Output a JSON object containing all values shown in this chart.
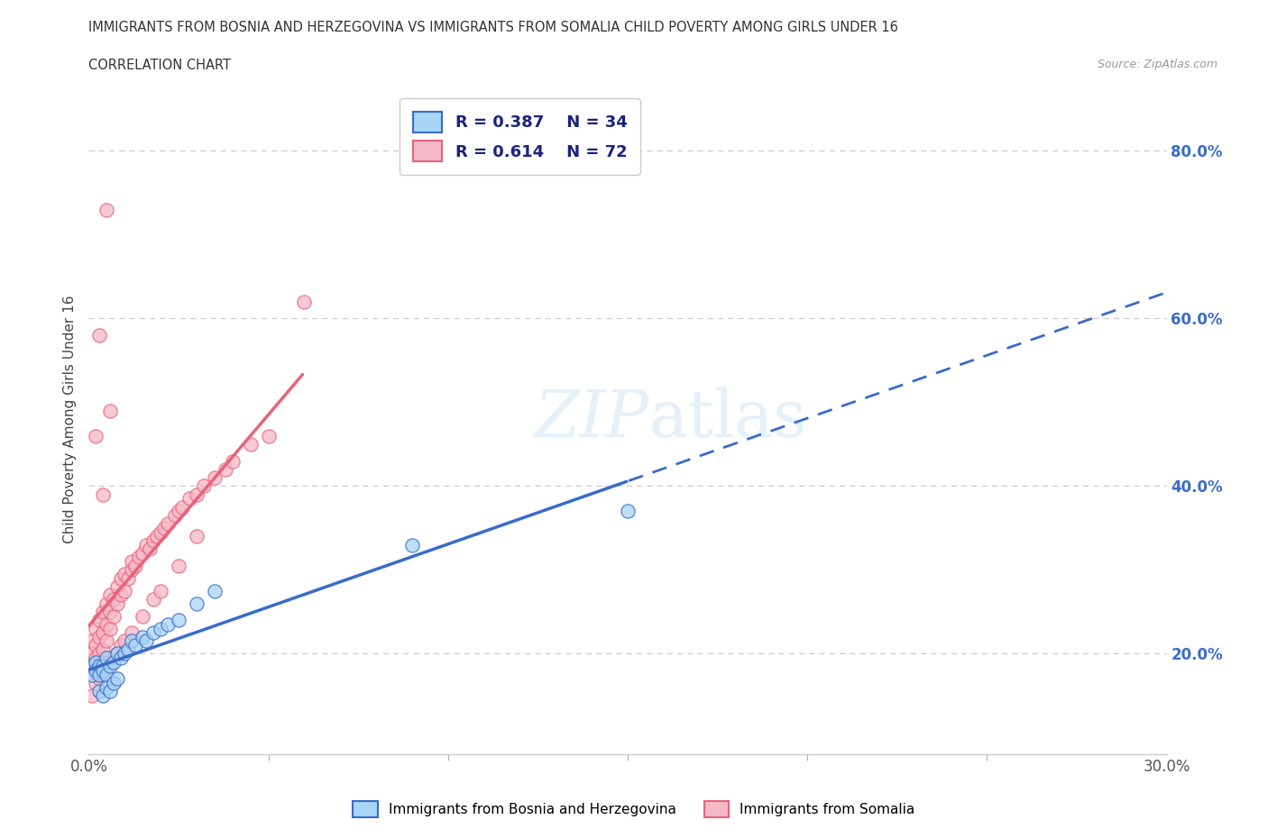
{
  "title": "IMMIGRANTS FROM BOSNIA AND HERZEGOVINA VS IMMIGRANTS FROM SOMALIA CHILD POVERTY AMONG GIRLS UNDER 16",
  "subtitle": "CORRELATION CHART",
  "source": "Source: ZipAtlas.com",
  "ylabel": "Child Poverty Among Girls Under 16",
  "ytick_labels": [
    "20.0%",
    "40.0%",
    "60.0%",
    "80.0%"
  ],
  "ytick_values": [
    0.2,
    0.4,
    0.6,
    0.8
  ],
  "xlim": [
    0.0,
    0.3
  ],
  "ylim": [
    0.08,
    0.88
  ],
  "bosnia_R": 0.387,
  "bosnia_N": 34,
  "somalia_R": 0.614,
  "somalia_N": 72,
  "bosnia_color": "#a8d4f5",
  "somalia_color": "#f5b8c8",
  "bosnia_line_color": "#3a6bc9",
  "somalia_line_color": "#e8637a",
  "grid_color": "#cccccc",
  "spine_color": "#cccccc",
  "tick_color": "#999999",
  "yaxis_label_color": "#3a6bc9",
  "title_color": "#333333"
}
